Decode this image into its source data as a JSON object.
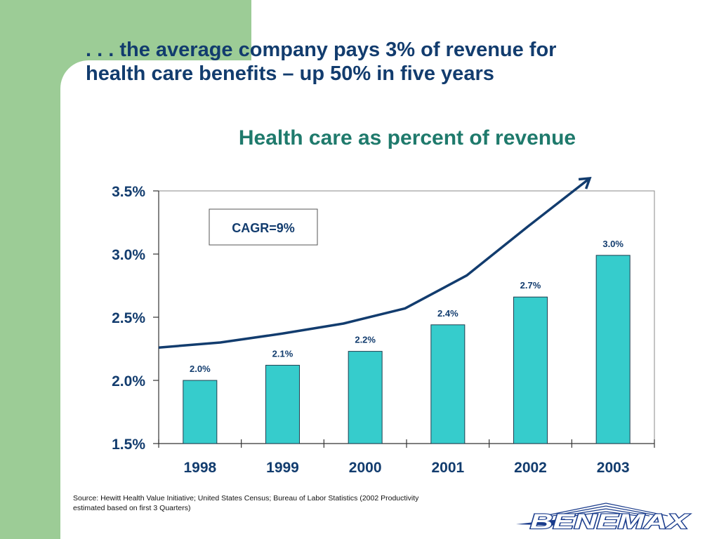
{
  "headline": {
    "line1": ". . . the average company pays 3% of revenue for",
    "line2": "health care benefits – up 50% in five years"
  },
  "chart_data": {
    "type": "bar",
    "title": "Health care as percent of revenue",
    "categories": [
      "1998",
      "1999",
      "2000",
      "2001",
      "2002",
      "2003"
    ],
    "values": [
      2.0,
      2.12,
      2.23,
      2.44,
      2.66,
      2.99
    ],
    "data_labels": [
      "2.0%",
      "2.1%",
      "2.2%",
      "2.4%",
      "2.7%",
      "3.0%"
    ],
    "ylim": [
      1.5,
      3.5
    ],
    "yticks": [
      1.5,
      2.0,
      2.5,
      3.0,
      3.5
    ],
    "ytick_labels": [
      "1.5%",
      "2.0%",
      "2.5%",
      "3.0%",
      "3.5%"
    ],
    "xlabel": "",
    "ylabel": "",
    "grid": false,
    "trend_arrow": [
      2.26,
      2.3,
      2.37,
      2.45,
      2.57,
      2.83,
      3.22,
      3.6
    ],
    "annotation": "CAGR=9%",
    "bar_color": "#36cccc",
    "line_color": "#123c6e"
  },
  "source": {
    "line1": "Source:  Hewitt Health Value Initiative;  United States Census; Bureau of Labor Statistics (2002 Productivity",
    "line2": "estimated based on first 3 Quarters)"
  },
  "logo": {
    "text": "BENEMAX"
  },
  "colors": {
    "green_band": "#9ccc96",
    "headline": "#123c6e",
    "chart_title": "#1f7a6c"
  }
}
